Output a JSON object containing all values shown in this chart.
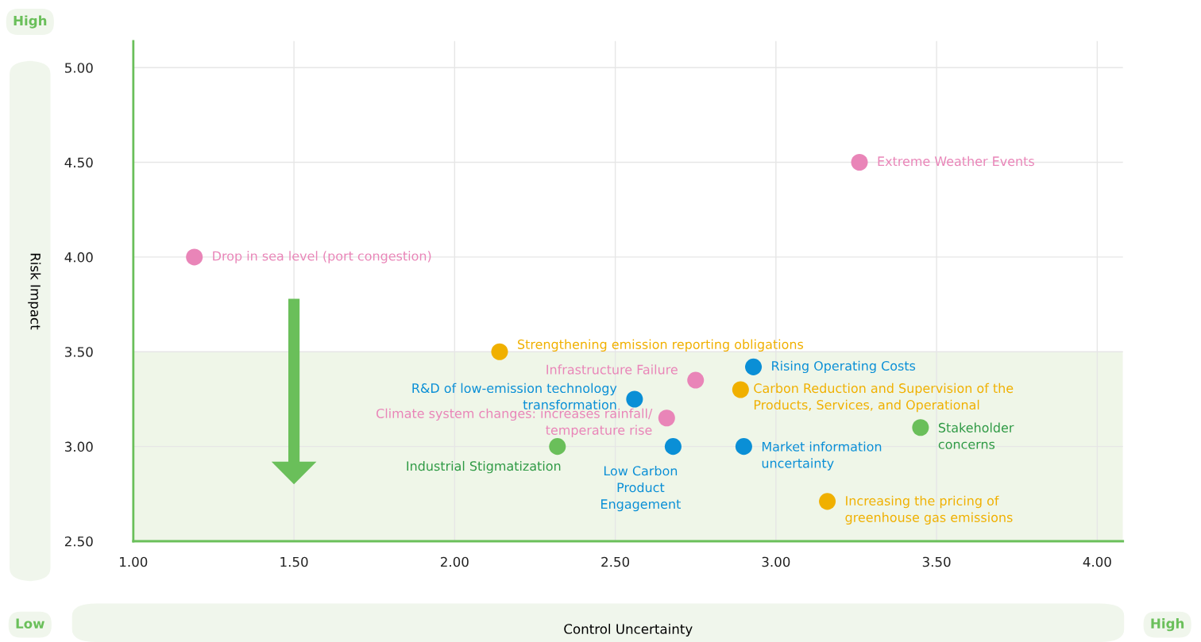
{
  "chart_data": {
    "type": "scatter",
    "xlabel": "Control Uncertainty",
    "ylabel": "Risk Impact",
    "xlim": [
      1.0,
      4.08
    ],
    "ylim": [
      2.5,
      5.14
    ],
    "xticks": [
      {
        "value": 1.0,
        "label": "1.00"
      },
      {
        "value": 1.5,
        "label": "1.50"
      },
      {
        "value": 2.0,
        "label": "2.00"
      },
      {
        "value": 2.5,
        "label": "2.50"
      },
      {
        "value": 3.0,
        "label": "3.00"
      },
      {
        "value": 3.5,
        "label": "3.50"
      },
      {
        "value": 4.0,
        "label": "4.00"
      }
    ],
    "yticks": [
      {
        "value": 2.5,
        "label": "2.50"
      },
      {
        "value": 3.0,
        "label": "3.00"
      },
      {
        "value": 3.5,
        "label": "3.50"
      },
      {
        "value": 4.0,
        "label": "4.00"
      },
      {
        "value": 4.5,
        "label": "4.50"
      },
      {
        "value": 5.0,
        "label": "5.00"
      }
    ],
    "grid": true,
    "marker": "circle",
    "bands": [
      {
        "axis": "y",
        "from": 2.5,
        "to": 3.5,
        "color": "#eff6e8"
      }
    ],
    "x": [
      3.26,
      1.19,
      2.14,
      2.75,
      2.93,
      2.56,
      2.89,
      2.66,
      3.45,
      2.32,
      2.68,
      2.9,
      3.16
    ],
    "values": [
      4.5,
      4.0,
      3.5,
      3.35,
      3.42,
      3.25,
      3.3,
      3.15,
      3.1,
      3.0,
      3.0,
      3.0,
      2.71
    ],
    "colors": [
      "#e985b8",
      "#e985b8",
      "#f0b000",
      "#e985b8",
      "#0a8fd6",
      "#0a8fd6",
      "#f0b000",
      "#e985b8",
      "#6abf5a",
      "#6abf5a",
      "#0a8fd6",
      "#0a8fd6",
      "#f0b000"
    ],
    "annotations": [
      {
        "text": "Extreme Weather Events",
        "x": 3.26,
        "y": 4.5
      },
      {
        "text": "Drop in sea level (port congestion)",
        "x": 1.19,
        "y": 4.0
      },
      {
        "text": "Strengthening emission reporting obligations",
        "x": 2.14,
        "y": 3.5
      },
      {
        "text": "Infrastructure Failure",
        "x": 2.75,
        "y": 3.35
      },
      {
        "text": "Rising Operating Costs",
        "x": 2.93,
        "y": 3.42
      },
      {
        "text": "R&D of low-emission technology\ntransformation",
        "x": 2.56,
        "y": 3.25
      },
      {
        "text": "Carbon Reduction and Supervision of the\nProducts, Services, and Operational",
        "x": 2.89,
        "y": 3.3
      },
      {
        "text": "Climate system changes: increases rainfall/\ntemperature rise",
        "x": 2.66,
        "y": 3.15
      },
      {
        "text": "Stakeholder\nconcerns",
        "x": 3.45,
        "y": 3.1
      },
      {
        "text": "Industrial Stigmatization",
        "x": 2.32,
        "y": 3.0
      },
      {
        "text": "Low Carbon\nProduct\nEngagement",
        "x": 2.68,
        "y": 3.0
      },
      {
        "text": "Market information\nuncertainty",
        "x": 2.9,
        "y": 3.0
      },
      {
        "text": "Increasing the pricing of\ngreenhouse gas emissions",
        "x": 3.16,
        "y": 2.71
      },
      "High",
      "Low",
      "High"
    ]
  }
}
